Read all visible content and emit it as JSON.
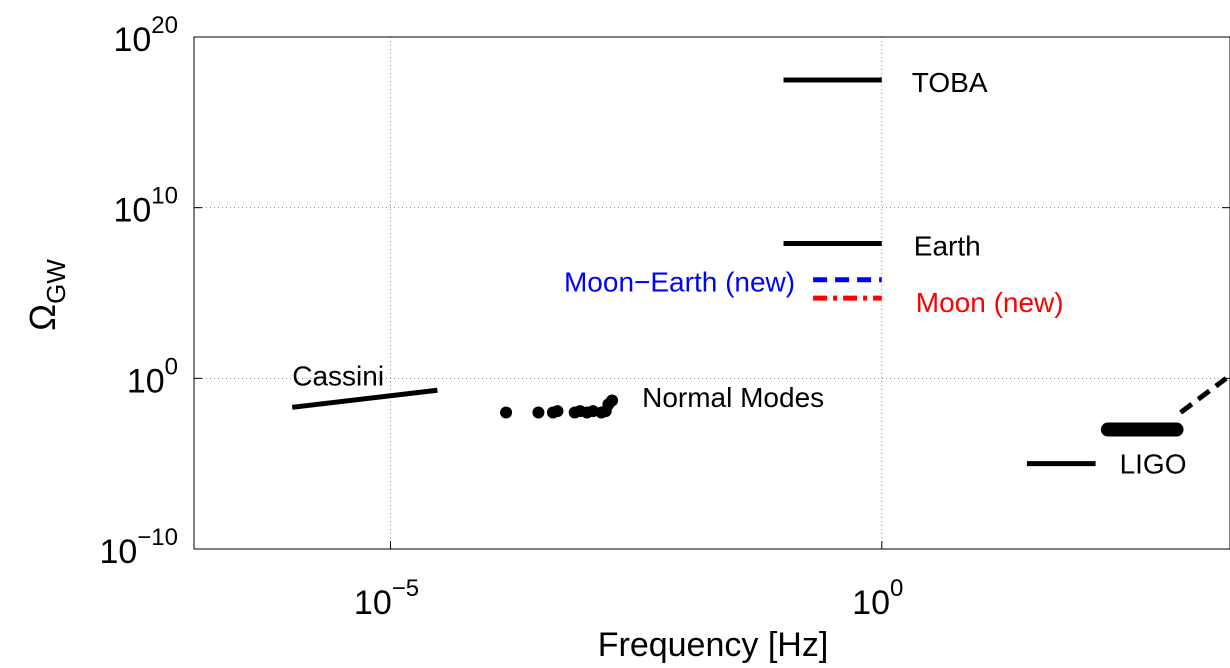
{
  "chart_data": {
    "type": "line",
    "xlabel": "Frequency [Hz]",
    "ylabel": "Ω",
    "ylabel_subscript": "GW",
    "x_scale": "log",
    "y_scale": "log",
    "xlim": [
      1e-07,
      3500
    ],
    "ylim": [
      1e-10,
      1e+20
    ],
    "grid": true,
    "x_ticks": [
      {
        "value": 1e-05,
        "base": "10",
        "exp": "−5"
      },
      {
        "value": 1,
        "base": "10",
        "exp": "0"
      }
    ],
    "y_ticks": [
      {
        "value": 1e-10,
        "base": "10",
        "exp": "−10"
      },
      {
        "value": 1,
        "base": "10",
        "exp": "0"
      },
      {
        "value": 10000000000.0,
        "base": "10",
        "exp": "10"
      },
      {
        "value": 1e+20,
        "base": "10",
        "exp": "20"
      }
    ],
    "series": [
      {
        "label": "TOBA",
        "style": "solid",
        "color": "#000000",
        "x": [
          0.1,
          1
        ],
        "y": [
          3e+17,
          3e+17
        ]
      },
      {
        "label": "Earth",
        "style": "solid",
        "color": "#000000",
        "x": [
          0.1,
          1
        ],
        "y": [
          80000000.0,
          80000000.0
        ]
      },
      {
        "label": "Moon−Earth (new)",
        "style": "dashed",
        "color": "#0000ff",
        "x": [
          0.2,
          1
        ],
        "y": [
          600000.0,
          600000.0
        ]
      },
      {
        "label": "Moon (new)",
        "style": "dashdot",
        "color": "#ff0000",
        "x": [
          0.2,
          1
        ],
        "y": [
          50000.0,
          50000.0
        ]
      },
      {
        "label": "Cassini",
        "style": "solid",
        "color": "#000000",
        "x": [
          1e-06,
          3e-05
        ],
        "y": [
          0.02,
          0.2
        ]
      },
      {
        "label": "LIGO",
        "style": "solid",
        "color": "#000000",
        "x": [
          30,
          150
        ],
        "y": [
          1e-05,
          1e-05
        ]
      },
      {
        "label": "",
        "style": "thick",
        "color": "#000000",
        "x": [
          200,
          1000
        ],
        "y": [
          0.001,
          0.001
        ]
      },
      {
        "label": "",
        "style": "dashed",
        "color": "#000000",
        "x": [
          1100,
          3200
        ],
        "y": [
          0.01,
          1
        ]
      }
    ],
    "points": {
      "label": "Normal Modes",
      "color": "#000000",
      "x": [
        0.00015,
        0.00032,
        0.00045,
        0.0005,
        0.00075,
        0.00085,
        0.001,
        0.00115,
        0.0014,
        0.00155,
        0.00165,
        0.0018
      ],
      "y": [
        0.01,
        0.01,
        0.01,
        0.012,
        0.01,
        0.012,
        0.01,
        0.012,
        0.01,
        0.012,
        0.03,
        0.05
      ]
    }
  }
}
